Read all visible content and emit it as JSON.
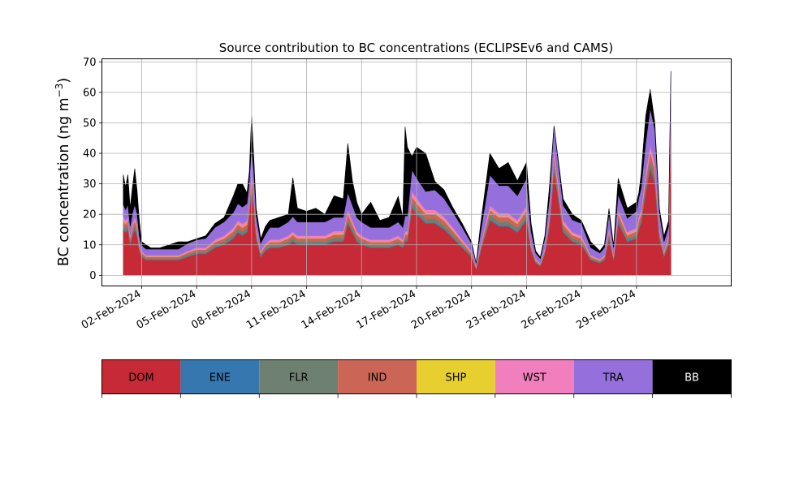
{
  "chart_data": {
    "type": "area",
    "title": "Source contribution to BC concentrations (ECLIPSEv6 and CAMS)",
    "ylabel": "BC concentration (ng m",
    "ylabel_superscript": "−3",
    "ylabel_close": ")",
    "xlabel": "",
    "ylim": [
      -3.5,
      71
    ],
    "yticks": [
      0,
      10,
      20,
      30,
      40,
      50,
      60,
      70
    ],
    "xlim": [
      "2024-01-30T20:00",
      "2024-03-05T04:00"
    ],
    "xticks": [
      "02-Feb-2024",
      "05-Feb-2024",
      "08-Feb-2024",
      "11-Feb-2024",
      "14-Feb-2024",
      "17-Feb-2024",
      "20-Feb-2024",
      "23-Feb-2024",
      "26-Feb-2024",
      "29-Feb-2024"
    ],
    "xtick_dates": [
      "2024-02-02",
      "2024-02-05",
      "2024-02-08",
      "2024-02-11",
      "2024-02-14",
      "2024-02-17",
      "2024-02-20",
      "2024-02-23",
      "2024-02-26",
      "2024-02-29"
    ],
    "grid": true,
    "stacked": true,
    "x": [
      "2024-02-01T00:00",
      "2024-02-01T03:00",
      "2024-02-01T06:00",
      "2024-02-01T09:00",
      "2024-02-01T12:00",
      "2024-02-01T15:00",
      "2024-02-01T18:00",
      "2024-02-01T21:00",
      "2024-02-02T00:00",
      "2024-02-02T06:00",
      "2024-02-02T12:00",
      "2024-02-02T18:00",
      "2024-02-03T00:00",
      "2024-02-03T12:00",
      "2024-02-04T00:00",
      "2024-02-04T12:00",
      "2024-02-05T00:00",
      "2024-02-05T12:00",
      "2024-02-06T00:00",
      "2024-02-06T12:00",
      "2024-02-07T00:00",
      "2024-02-07T06:00",
      "2024-02-07T12:00",
      "2024-02-07T18:00",
      "2024-02-07T21:00",
      "2024-02-08T00:00",
      "2024-02-08T03:00",
      "2024-02-08T06:00",
      "2024-02-08T12:00",
      "2024-02-08T18:00",
      "2024-02-09T00:00",
      "2024-02-09T12:00",
      "2024-02-10T00:00",
      "2024-02-10T06:00",
      "2024-02-10T12:00",
      "2024-02-11T00:00",
      "2024-02-11T12:00",
      "2024-02-12T00:00",
      "2024-02-12T12:00",
      "2024-02-13T00:00",
      "2024-02-13T06:00",
      "2024-02-13T12:00",
      "2024-02-13T18:00",
      "2024-02-14T00:00",
      "2024-02-14T12:00",
      "2024-02-15T00:00",
      "2024-02-15T12:00",
      "2024-02-16T00:00",
      "2024-02-16T06:00",
      "2024-02-16T09:00",
      "2024-02-16T12:00",
      "2024-02-16T18:00",
      "2024-02-17T00:00",
      "2024-02-17T12:00",
      "2024-02-18T00:00",
      "2024-02-18T12:00",
      "2024-02-19T00:00",
      "2024-02-19T12:00",
      "2024-02-20T00:00",
      "2024-02-20T06:00",
      "2024-02-20T12:00",
      "2024-02-21T00:00",
      "2024-02-21T12:00",
      "2024-02-22T00:00",
      "2024-02-22T12:00",
      "2024-02-23T00:00",
      "2024-02-23T06:00",
      "2024-02-23T12:00",
      "2024-02-23T18:00",
      "2024-02-24T00:00",
      "2024-02-24T06:00",
      "2024-02-24T12:00",
      "2024-02-25T00:00",
      "2024-02-25T12:00",
      "2024-02-26T00:00",
      "2024-02-26T12:00",
      "2024-02-27T00:00",
      "2024-02-27T06:00",
      "2024-02-27T12:00",
      "2024-02-27T18:00",
      "2024-02-28T00:00",
      "2024-02-28T12:00",
      "2024-02-29T00:00",
      "2024-02-29T03:00",
      "2024-02-29T06:00",
      "2024-02-29T12:00",
      "2024-02-29T18:00",
      "2024-03-01T00:00",
      "2024-03-01T06:00",
      "2024-03-01T12:00",
      "2024-03-01T18:00",
      "2024-03-01T21:00"
    ],
    "series": [
      {
        "name": "DOM",
        "color": "#c62a36",
        "values": [
          15,
          14,
          15,
          10,
          13,
          15,
          13,
          8,
          6,
          5,
          5,
          5,
          5,
          5,
          5,
          6,
          7,
          7,
          9,
          10,
          12,
          14,
          13,
          14,
          20,
          28,
          22,
          12,
          6,
          8,
          9,
          9,
          10,
          11,
          10,
          10,
          10,
          10,
          11,
          11,
          17,
          14,
          11,
          10,
          9,
          9,
          9,
          10,
          9,
          11,
          11,
          22,
          20,
          17,
          17,
          15,
          12,
          9,
          6,
          2,
          8,
          18,
          16,
          16,
          14,
          18,
          8,
          4,
          3,
          7,
          16,
          34,
          14,
          11,
          10,
          5,
          4,
          5,
          12,
          5,
          17,
          11,
          12,
          15,
          17,
          27,
          35,
          30,
          12,
          6,
          10,
          48
        ]
      },
      {
        "name": "ENE",
        "color": "#3677b0",
        "values": [
          0.3,
          0.3,
          0.3,
          0.2,
          0.3,
          0.3,
          0.3,
          0.2,
          0.2,
          0.1,
          0.1,
          0.1,
          0.1,
          0.1,
          0.1,
          0.2,
          0.2,
          0.2,
          0.2,
          0.2,
          0.3,
          0.3,
          0.3,
          0.3,
          0.4,
          0.6,
          0.4,
          0.3,
          0.2,
          0.2,
          0.2,
          0.2,
          0.2,
          0.3,
          0.2,
          0.2,
          0.2,
          0.2,
          0.3,
          0.3,
          0.3,
          0.3,
          0.2,
          0.2,
          0.2,
          0.2,
          0.2,
          0.2,
          0.2,
          0.3,
          0.3,
          0.4,
          0.4,
          0.3,
          0.3,
          0.3,
          0.3,
          0.2,
          0.1,
          0.1,
          0.2,
          0.4,
          0.3,
          0.3,
          0.3,
          0.3,
          0.2,
          0.1,
          0.1,
          0.2,
          0.3,
          0.6,
          0.3,
          0.2,
          0.2,
          0.1,
          0.1,
          0.1,
          0.3,
          0.1,
          0.3,
          0.2,
          0.3,
          0.3,
          0.3,
          0.5,
          0.6,
          0.5,
          0.3,
          0.2,
          0.2,
          0.8
        ]
      },
      {
        "name": "FLR",
        "color": "#6e8070",
        "values": [
          1.2,
          1.1,
          1.2,
          0.9,
          1.1,
          1.2,
          1.1,
          0.7,
          0.6,
          0.5,
          0.5,
          0.5,
          0.5,
          0.5,
          0.5,
          0.6,
          0.6,
          0.6,
          0.8,
          0.9,
          1,
          1.1,
          1.1,
          1.1,
          1.4,
          1.8,
          1.5,
          1,
          0.6,
          0.7,
          0.8,
          0.8,
          0.9,
          0.9,
          0.9,
          0.9,
          0.9,
          0.9,
          1,
          1,
          1.3,
          1.1,
          1,
          0.9,
          0.8,
          0.8,
          0.8,
          0.9,
          0.8,
          1,
          1,
          1.6,
          1.5,
          1.3,
          1.3,
          1.2,
          1,
          0.8,
          0.6,
          0.3,
          0.7,
          1.4,
          1.3,
          1.3,
          1.2,
          1.4,
          0.7,
          0.4,
          0.3,
          0.6,
          1.2,
          2,
          1.1,
          0.9,
          0.9,
          0.5,
          0.4,
          0.5,
          1,
          0.5,
          1.3,
          0.9,
          1,
          1.2,
          1.3,
          1.8,
          2.2,
          1.9,
          1,
          0.6,
          0.9,
          2.5
        ]
      },
      {
        "name": "IND",
        "color": "#cb6657",
        "values": [
          1.5,
          1.4,
          1.5,
          1.1,
          1.3,
          1.5,
          1.3,
          0.8,
          0.6,
          0.5,
          0.5,
          0.5,
          0.5,
          0.5,
          0.5,
          0.6,
          0.7,
          0.7,
          0.9,
          1,
          1.2,
          1.4,
          1.3,
          1.4,
          1.8,
          2.3,
          1.9,
          1.2,
          0.6,
          0.8,
          0.9,
          0.9,
          1,
          1.1,
          1,
          1,
          1,
          1,
          1.1,
          1.1,
          1.6,
          1.4,
          1.1,
          1,
          0.9,
          0.9,
          0.9,
          1,
          0.9,
          1.1,
          1.1,
          2,
          1.9,
          1.6,
          1.6,
          1.5,
          1.2,
          0.9,
          0.6,
          0.3,
          0.8,
          1.7,
          1.5,
          1.5,
          1.4,
          1.7,
          0.8,
          0.4,
          0.3,
          0.7,
          1.5,
          2.5,
          1.4,
          1.1,
          1,
          0.5,
          0.4,
          0.5,
          1.2,
          0.5,
          1.6,
          1.1,
          1.2,
          1.5,
          1.6,
          2.3,
          2.8,
          2.5,
          1.2,
          0.6,
          1,
          3
        ]
      },
      {
        "name": "SHP",
        "color": "#e6cf2e",
        "values": [
          0.2,
          0.2,
          0.2,
          0.1,
          0.2,
          0.2,
          0.2,
          0.1,
          0.1,
          0.1,
          0.1,
          0.1,
          0.1,
          0.1,
          0.1,
          0.1,
          0.1,
          0.1,
          0.1,
          0.1,
          0.2,
          0.2,
          0.2,
          0.2,
          0.2,
          0.3,
          0.2,
          0.2,
          0.1,
          0.1,
          0.1,
          0.1,
          0.1,
          0.2,
          0.1,
          0.1,
          0.1,
          0.1,
          0.2,
          0.2,
          0.2,
          0.2,
          0.2,
          0.1,
          0.1,
          0.1,
          0.1,
          0.1,
          0.1,
          0.2,
          0.2,
          0.3,
          0.3,
          0.2,
          0.2,
          0.2,
          0.2,
          0.1,
          0.1,
          0.1,
          0.1,
          0.2,
          0.2,
          0.2,
          0.2,
          0.2,
          0.1,
          0.1,
          0.1,
          0.1,
          0.2,
          0.4,
          0.2,
          0.2,
          0.1,
          0.1,
          0.1,
          0.1,
          0.2,
          0.1,
          0.2,
          0.2,
          0.2,
          0.2,
          0.2,
          0.3,
          0.4,
          0.3,
          0.2,
          0.1,
          0.1,
          0.5
        ]
      },
      {
        "name": "WST",
        "color": "#f27fbd",
        "values": [
          1,
          1,
          1,
          0.8,
          1,
          1,
          1,
          0.6,
          0.4,
          0.4,
          0.4,
          0.4,
          0.4,
          0.4,
          0.4,
          0.4,
          0.5,
          0.5,
          0.7,
          0.8,
          0.9,
          1,
          1,
          1,
          1.2,
          1.5,
          1.3,
          0.9,
          0.5,
          0.6,
          0.7,
          0.7,
          0.8,
          0.8,
          0.8,
          0.8,
          0.8,
          0.8,
          0.9,
          0.9,
          1.2,
          1,
          0.9,
          0.8,
          0.7,
          0.7,
          0.7,
          0.8,
          0.7,
          0.9,
          0.9,
          1.3,
          1.3,
          1.1,
          1.1,
          1,
          0.9,
          0.7,
          0.5,
          0.2,
          0.6,
          1.2,
          1.1,
          1.1,
          1,
          1.2,
          0.6,
          0.3,
          0.2,
          0.5,
          1.1,
          1.5,
          1,
          0.8,
          0.8,
          0.4,
          0.3,
          0.4,
          0.9,
          0.4,
          1.1,
          0.8,
          0.9,
          1.1,
          1.1,
          1.5,
          1.8,
          1.6,
          0.9,
          0.5,
          0.8,
          1.8
        ]
      },
      {
        "name": "TRA",
        "color": "#9570dc",
        "values": [
          4,
          3.5,
          4,
          3,
          3.5,
          4,
          3.5,
          2.5,
          2,
          2,
          2,
          2,
          2,
          2,
          2,
          2.5,
          2.5,
          3,
          4,
          4.5,
          5,
          5.5,
          5.5,
          5.5,
          6,
          8,
          6.5,
          4,
          2.5,
          3,
          4,
          4,
          4.5,
          5,
          4.5,
          4.5,
          4.5,
          4.5,
          4.5,
          4.5,
          5.5,
          5,
          4.5,
          4.5,
          4,
          4,
          4,
          4.5,
          4,
          5,
          5,
          7,
          6.5,
          6,
          6.5,
          6,
          5,
          4,
          2.5,
          1,
          4,
          10,
          9,
          9,
          8,
          9,
          4,
          2,
          1.5,
          3,
          5,
          8,
          5,
          4,
          4,
          2.5,
          2,
          2.5,
          4.5,
          2.5,
          5,
          4.5,
          5.5,
          6,
          7,
          10,
          12,
          11,
          5,
          3,
          3,
          10
        ]
      },
      {
        "name": "BB",
        "color": "#000000",
        "values": [
          9.8,
          7.5,
          9.8,
          5.9,
          8.6,
          11.8,
          7.6,
          5.1,
          1.1,
          1.4,
          0.4,
          0.4,
          0.4,
          1.4,
          2.4,
          0.6,
          0.4,
          0.9,
          1.3,
          1.5,
          5.4,
          6.5,
          7.6,
          3.5,
          3,
          10,
          4.2,
          2.4,
          1.5,
          2.6,
          2.3,
          3.3,
          2.5,
          12.7,
          4.5,
          3.5,
          4.5,
          2.5,
          7.1,
          6.1,
          16.2,
          8,
          4.9,
          2.5,
          8.3,
          2.3,
          3.3,
          8.4,
          3.3,
          29.2,
          22.5,
          4.4,
          10.1,
          12.5,
          2.8,
          2.8,
          1.4,
          1.2,
          0.6,
          0,
          2.6,
          7.1,
          5.6,
          7.6,
          4.9,
          5.2,
          2.6,
          0.7,
          0.5,
          0.9,
          3.7,
          0,
          2,
          1.8,
          0.9,
          1.9,
          0.7,
          1,
          1.8,
          0.7,
          5.3,
          3.3,
          2.9,
          1.7,
          4.5,
          8.8,
          6.2,
          2.3,
          1.4,
          1.8,
          1.9,
          0.4
        ]
      }
    ]
  },
  "legend": {
    "items": [
      {
        "label": "DOM",
        "color": "#c62a36",
        "text_color": "#000000"
      },
      {
        "label": "ENE",
        "color": "#3677b0",
        "text_color": "#000000"
      },
      {
        "label": "FLR",
        "color": "#6e8070",
        "text_color": "#000000"
      },
      {
        "label": "IND",
        "color": "#cb6657",
        "text_color": "#000000"
      },
      {
        "label": "SHP",
        "color": "#e6cf2e",
        "text_color": "#000000"
      },
      {
        "label": "WST",
        "color": "#f27fbd",
        "text_color": "#000000"
      },
      {
        "label": "TRA",
        "color": "#9570dc",
        "text_color": "#000000"
      },
      {
        "label": "BB",
        "color": "#000000",
        "text_color": "#ffffff"
      }
    ]
  }
}
